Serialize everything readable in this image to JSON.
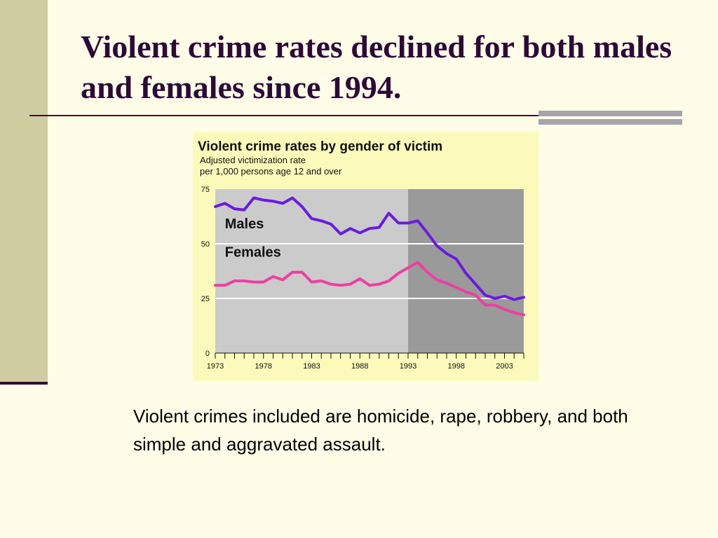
{
  "slide": {
    "title": "Violent crime rates declined for both males and females since 1994.",
    "caption": "Violent crimes included are homicide, rape, robbery, and both simple and aggravated assault."
  },
  "colors": {
    "males": "#6a1be0",
    "females": "#ee3fa0",
    "plot_bg": "#cbcbcb",
    "shaded_bg": "#9a9a9a",
    "chart_bg": "#fbfaba",
    "left_bar": "#cfcda0",
    "title_text": "#2d0a37",
    "accent_bars": "#a5a4ad"
  },
  "chart_data": {
    "type": "line",
    "title": "Violent crime rates by gender of victim",
    "subtitle": "Adjusted victimization rate per 1,000 persons age 12 and over",
    "subtitle_lines": [
      "Adjusted victimization rate",
      "per 1,000 persons age 12 and over"
    ],
    "xlabel": "",
    "ylabel": "",
    "xlim": [
      1973,
      2005
    ],
    "ylim": [
      0,
      75
    ],
    "x_tick_labels": [
      "1973",
      "1978",
      "1983",
      "1988",
      "1993",
      "1998",
      "2003"
    ],
    "y_tick_labels": [
      "0",
      "25",
      "50",
      "75"
    ],
    "gridlines": [
      25,
      50
    ],
    "shaded_region": [
      1993,
      2005
    ],
    "x": [
      1973,
      1974,
      1975,
      1976,
      1977,
      1978,
      1979,
      1980,
      1981,
      1982,
      1983,
      1984,
      1985,
      1986,
      1987,
      1988,
      1989,
      1990,
      1991,
      1992,
      1993,
      1994,
      1995,
      1996,
      1997,
      1998,
      1999,
      2000,
      2001,
      2002,
      2003,
      2004,
      2005
    ],
    "series": [
      {
        "name": "Males",
        "values": [
          67,
          68.5,
          66,
          65.5,
          71,
          70,
          69.5,
          68.5,
          71,
          67,
          61.5,
          60.5,
          59,
          54.5,
          57,
          55,
          57,
          57.5,
          64,
          59.5,
          59.5,
          60.5,
          55,
          49,
          45.5,
          43,
          36.5,
          31.5,
          26.5,
          25,
          26,
          24.5,
          25.5
        ]
      },
      {
        "name": "Females",
        "values": [
          31,
          31,
          33,
          33,
          32.5,
          32.5,
          35,
          33.5,
          37,
          37,
          32.5,
          33,
          31.5,
          31,
          31.5,
          34,
          31,
          31.5,
          33,
          36.5,
          39,
          41.5,
          37,
          33.5,
          32,
          30,
          28,
          26.5,
          22,
          22,
          20,
          18.5,
          17.5
        ]
      }
    ]
  }
}
